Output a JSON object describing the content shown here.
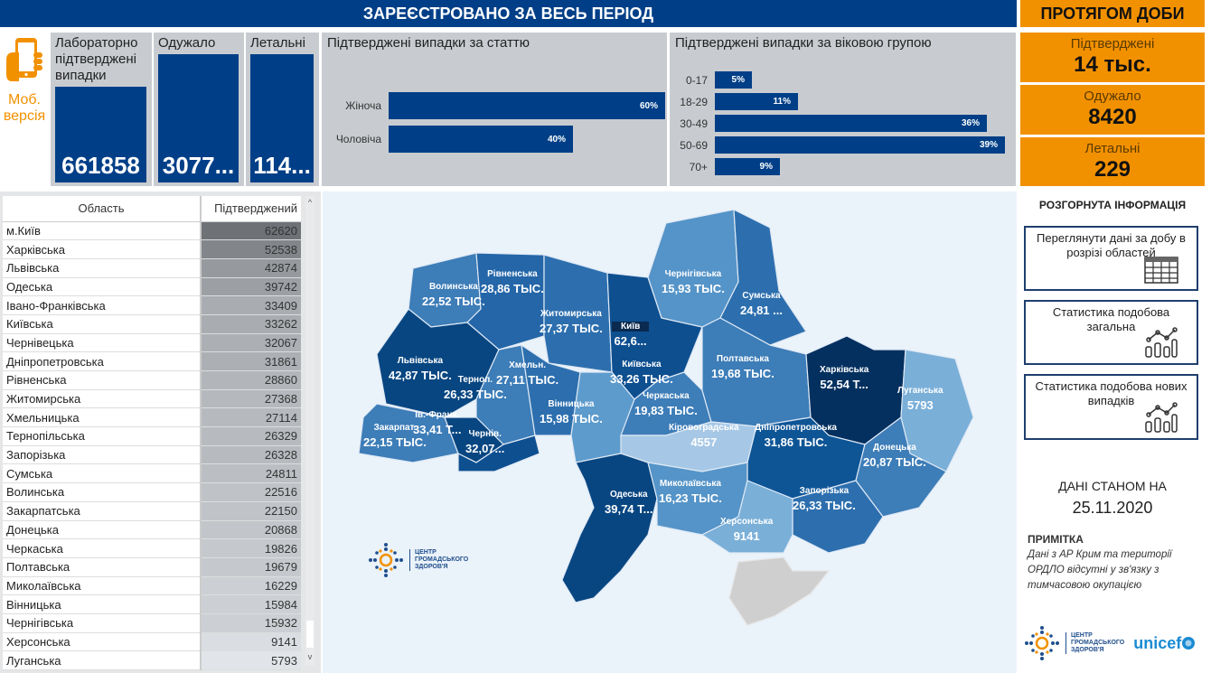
{
  "header": {
    "main_title": "ЗАРЕЄСТРОВАНО ЗА ВЕСЬ ПЕРІОД",
    "day_title": "ПРОТЯГОМ ДОБИ"
  },
  "mobile": {
    "label_line1": "Моб.",
    "label_line2": "версія",
    "icon": "phone-hand-icon"
  },
  "totals": {
    "confirmed": {
      "label": "Лабораторно підтверджені випадки",
      "value": "661858"
    },
    "recovered": {
      "label": "Одужало",
      "value": "3077..."
    },
    "deaths": {
      "label": "Летальні",
      "value": "114..."
    }
  },
  "daily": {
    "confirmed": {
      "label": "Підтверджені",
      "value": "14 тыс."
    },
    "recovered": {
      "label": "Одужало",
      "value": "8420"
    },
    "deaths": {
      "label": "Летальні",
      "value": "229"
    }
  },
  "chart_data": [
    {
      "type": "bar",
      "orientation": "horizontal",
      "title": "Підтверджені випадки за статтю",
      "categories": [
        "Жіноча",
        "Чоловіча"
      ],
      "values": [
        60,
        40
      ],
      "value_labels": [
        "60%",
        "40%"
      ],
      "unit": "%"
    },
    {
      "type": "bar",
      "orientation": "horizontal",
      "title": "Підтверджені випадки за віковою групою",
      "categories": [
        "0-17",
        "18-29",
        "30-49",
        "50-69",
        "70+"
      ],
      "values": [
        5,
        11,
        36,
        39,
        9
      ],
      "value_labels": [
        "5%",
        "11%",
        "36%",
        "39%",
        "9%"
      ],
      "unit": "%"
    }
  ],
  "table": {
    "headers": [
      "Область",
      "Підтверджений"
    ],
    "rows": [
      [
        "м.Київ",
        "62620"
      ],
      [
        "Харківська",
        "52538"
      ],
      [
        "Львівська",
        "42874"
      ],
      [
        "Одеська",
        "39742"
      ],
      [
        "Івано-Франківська",
        "33409"
      ],
      [
        "Київська",
        "33262"
      ],
      [
        "Чернівецька",
        "32067"
      ],
      [
        "Дніпропетровська",
        "31861"
      ],
      [
        "Рівненська",
        "28860"
      ],
      [
        "Житомирська",
        "27368"
      ],
      [
        "Хмельницька",
        "27114"
      ],
      [
        "Тернопільська",
        "26329"
      ],
      [
        "Запорізька",
        "26328"
      ],
      [
        "Сумська",
        "24811"
      ],
      [
        "Волинська",
        "22516"
      ],
      [
        "Закарпатська",
        "22150"
      ],
      [
        "Донецька",
        "20868"
      ],
      [
        "Черкаська",
        "19826"
      ],
      [
        "Полтавська",
        "19679"
      ],
      [
        "Миколаївська",
        "16229"
      ],
      [
        "Вінницька",
        "15984"
      ],
      [
        "Чернігівська",
        "15932"
      ],
      [
        "Херсонська",
        "9141"
      ],
      [
        "Луганська",
        "5793"
      ]
    ]
  },
  "map": {
    "labels": [
      {
        "name": "Волинська",
        "value": "22,52 ТЫС."
      },
      {
        "name": "Рівненська",
        "value": "28,86 ТЫС."
      },
      {
        "name": "Житомирська",
        "value": "27,37 ТЫС."
      },
      {
        "name": "Чернігівська",
        "value": "15,93 ТЫС."
      },
      {
        "name": "Сумська",
        "value": "24,81 ..."
      },
      {
        "name": "Київ",
        "value": "62,6..."
      },
      {
        "name": "Київська",
        "value": "33,26 ТЫС."
      },
      {
        "name": "Львівська",
        "value": "42,87 ТЫС."
      },
      {
        "name": "Терноп.",
        "value": "26,33 ТЫС."
      },
      {
        "name": "Хмельн.",
        "value": "27,11 ТЫС."
      },
      {
        "name": "Вінницька",
        "value": "15,98 ТЫС."
      },
      {
        "name": "Черкаська",
        "value": "19,83 ТЫС."
      },
      {
        "name": "Полтавська",
        "value": "19,68 ТЫС."
      },
      {
        "name": "Харківська",
        "value": "52,54 Т..."
      },
      {
        "name": "Луганська",
        "value": "5793"
      },
      {
        "name": "Закарпат.",
        "value": "22,15 ТЫС."
      },
      {
        "name": "Ів.-Франк.",
        "value": "33,41 Т..."
      },
      {
        "name": "Чернів.",
        "value": "32,07..."
      },
      {
        "name": "Кіровоградська",
        "value": "4557"
      },
      {
        "name": "Дніпропетровська",
        "value": "31,86 ТЫС."
      },
      {
        "name": "Донецька",
        "value": "20,87 ТЫС."
      },
      {
        "name": "Одеська",
        "value": "39,74 Т..."
      },
      {
        "name": "Миколаївська",
        "value": "16,23 ТЫС."
      },
      {
        "name": "Запорізька",
        "value": "26,33 ТЫС."
      },
      {
        "name": "Херсонська",
        "value": "9141"
      }
    ],
    "logo_text": [
      "ЦЕНТР",
      "ГРОМАДСЬКОГО",
      "ЗДОРОВ'Я"
    ]
  },
  "info": {
    "title": "РОЗГОРНУТА ІНФОРМАЦІЯ",
    "buttons": [
      {
        "label": "Переглянути дані за добу в розрізі областей",
        "icon": "table-icon"
      },
      {
        "label": "Статистика подобова загальна",
        "icon": "chart-icon"
      },
      {
        "label": "Статистика подобова нових випадків",
        "icon": "chart-icon"
      }
    ],
    "asof_label": "ДАНІ СТАНОМ НА",
    "asof_date": "25.11.2020",
    "note_title": "ПРИМІТКА",
    "note_body": "Дані з АР Крим та території ОРДЛО відсутні у зв'язку з тимчасовою окупацією",
    "footer_logo_text": [
      "ЦЕНТР",
      "ГРОМАДСЬКОГО",
      "ЗДОРОВ'Я"
    ],
    "unicef": "unicef"
  },
  "colors": {
    "navy": "#003f87",
    "orange": "#f29100",
    "panel_gray": "#c8ccd0",
    "map_bg": "#eaf2fa"
  }
}
